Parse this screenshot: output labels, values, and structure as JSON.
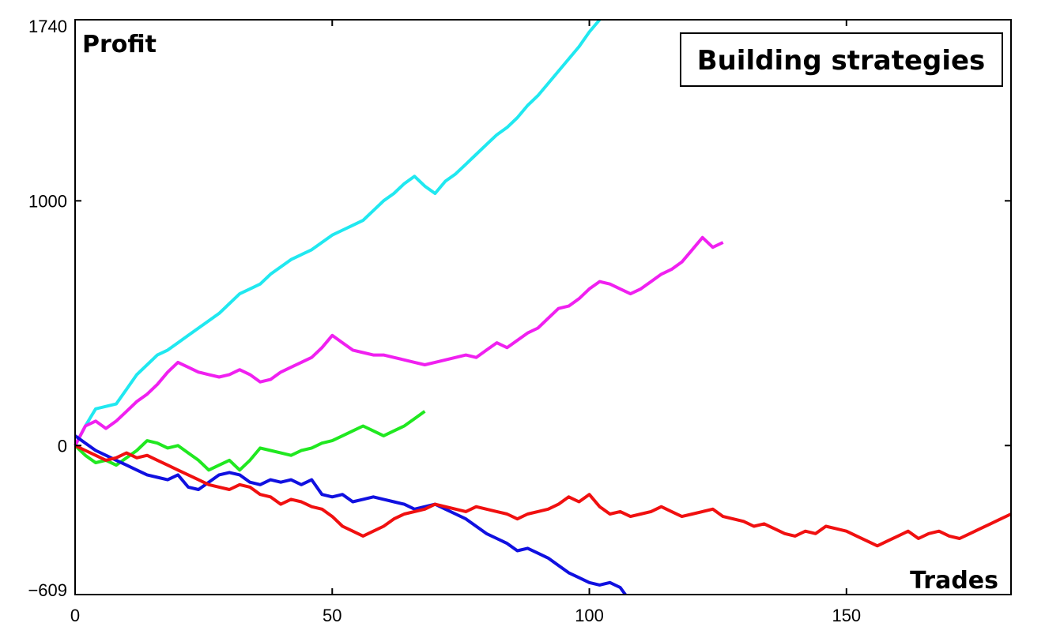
{
  "chart_data": {
    "type": "line",
    "title": "Building strategies",
    "xlabel": "Trades",
    "ylabel": "Profit",
    "xlim": [
      0,
      182
    ],
    "ylim": [
      -609,
      1740
    ],
    "xticks": [
      0,
      50,
      100,
      150
    ],
    "yticks": [
      -609,
      0,
      1000,
      1740
    ],
    "xtick_labels": [
      "0",
      "50",
      "100",
      "150"
    ],
    "ytick_labels": [
      "−609",
      "0",
      "1000",
      "1740"
    ],
    "grid": false,
    "legend": "none",
    "series": [
      {
        "color": "#20e8f0",
        "x": [
          0,
          2,
          4,
          6,
          8,
          10,
          12,
          14,
          16,
          18,
          20,
          22,
          24,
          26,
          28,
          30,
          32,
          34,
          36,
          38,
          40,
          42,
          44,
          46,
          48,
          50,
          52,
          54,
          56,
          58,
          60,
          62,
          64,
          66,
          68,
          70,
          72,
          74,
          76,
          78,
          80,
          82,
          84,
          86,
          88,
          90,
          92,
          94,
          96,
          98,
          100,
          102
        ],
        "y": [
          0,
          80,
          150,
          160,
          170,
          230,
          290,
          330,
          370,
          390,
          420,
          450,
          480,
          510,
          540,
          580,
          620,
          640,
          660,
          700,
          730,
          760,
          780,
          800,
          830,
          860,
          880,
          900,
          920,
          960,
          1000,
          1030,
          1070,
          1100,
          1060,
          1030,
          1080,
          1110,
          1150,
          1190,
          1230,
          1270,
          1300,
          1340,
          1390,
          1430,
          1480,
          1530,
          1580,
          1630,
          1690,
          1740
        ]
      },
      {
        "color": "#f020f0",
        "x": [
          0,
          2,
          4,
          6,
          8,
          10,
          12,
          14,
          16,
          18,
          20,
          22,
          24,
          26,
          28,
          30,
          32,
          34,
          36,
          38,
          40,
          42,
          44,
          46,
          48,
          50,
          52,
          54,
          56,
          58,
          60,
          62,
          64,
          66,
          68,
          70,
          72,
          74,
          76,
          78,
          80,
          82,
          84,
          86,
          88,
          90,
          92,
          94,
          96,
          98,
          100,
          102,
          104,
          106,
          108,
          110,
          112,
          114,
          116,
          118,
          120,
          122,
          124,
          126
        ],
        "y": [
          0,
          80,
          100,
          70,
          100,
          140,
          180,
          210,
          250,
          300,
          340,
          320,
          300,
          290,
          280,
          290,
          310,
          290,
          260,
          270,
          300,
          320,
          340,
          360,
          400,
          450,
          420,
          390,
          380,
          370,
          370,
          360,
          350,
          340,
          330,
          340,
          350,
          360,
          370,
          360,
          390,
          420,
          400,
          430,
          460,
          480,
          520,
          560,
          570,
          600,
          640,
          670,
          660,
          640,
          620,
          640,
          670,
          700,
          720,
          750,
          800,
          850,
          810,
          830
        ]
      },
      {
        "color": "#20e820",
        "x": [
          0,
          2,
          4,
          6,
          8,
          10,
          12,
          14,
          16,
          18,
          20,
          22,
          24,
          26,
          28,
          30,
          32,
          34,
          36,
          38,
          40,
          42,
          44,
          46,
          48,
          50,
          52,
          54,
          56,
          58,
          60,
          62,
          64,
          66,
          68
        ],
        "y": [
          0,
          -40,
          -70,
          -60,
          -80,
          -50,
          -20,
          20,
          10,
          -10,
          0,
          -30,
          -60,
          -100,
          -80,
          -60,
          -100,
          -60,
          -10,
          -20,
          -30,
          -40,
          -20,
          -10,
          10,
          20,
          40,
          60,
          80,
          60,
          40,
          60,
          80,
          110,
          140
        ]
      },
      {
        "color": "#1010e0",
        "x": [
          0,
          2,
          4,
          6,
          8,
          10,
          12,
          14,
          16,
          18,
          20,
          22,
          24,
          26,
          28,
          30,
          32,
          34,
          36,
          38,
          40,
          42,
          44,
          46,
          48,
          50,
          52,
          54,
          56,
          58,
          60,
          62,
          64,
          66,
          68,
          70,
          72,
          74,
          76,
          78,
          80,
          82,
          84,
          86,
          88,
          90,
          92,
          94,
          96,
          98,
          100,
          102,
          104,
          106,
          107
        ],
        "y": [
          40,
          10,
          -20,
          -40,
          -60,
          -80,
          -100,
          -120,
          -130,
          -140,
          -120,
          -170,
          -180,
          -150,
          -120,
          -110,
          -120,
          -150,
          -160,
          -140,
          -150,
          -140,
          -160,
          -140,
          -200,
          -210,
          -200,
          -230,
          -220,
          -210,
          -220,
          -230,
          -240,
          -260,
          -250,
          -240,
          -260,
          -280,
          -300,
          -330,
          -360,
          -380,
          -400,
          -430,
          -420,
          -440,
          -460,
          -490,
          -520,
          -540,
          -560,
          -570,
          -560,
          -580,
          -609
        ]
      },
      {
        "color": "#f01010",
        "x": [
          0,
          2,
          4,
          6,
          8,
          10,
          12,
          14,
          16,
          18,
          20,
          22,
          24,
          26,
          28,
          30,
          32,
          34,
          36,
          38,
          40,
          42,
          44,
          46,
          48,
          50,
          52,
          54,
          56,
          58,
          60,
          62,
          64,
          66,
          68,
          70,
          72,
          74,
          76,
          78,
          80,
          82,
          84,
          86,
          88,
          90,
          92,
          94,
          96,
          98,
          100,
          102,
          104,
          106,
          108,
          110,
          112,
          114,
          116,
          118,
          120,
          122,
          124,
          126,
          128,
          130,
          132,
          134,
          136,
          138,
          140,
          142,
          144,
          146,
          148,
          150,
          152,
          154,
          156,
          158,
          160,
          162,
          164,
          166,
          168,
          170,
          172,
          174,
          176,
          178,
          180,
          182
        ],
        "y": [
          0,
          -20,
          -40,
          -60,
          -50,
          -30,
          -50,
          -40,
          -60,
          -80,
          -100,
          -120,
          -140,
          -160,
          -170,
          -180,
          -160,
          -170,
          -200,
          -210,
          -240,
          -220,
          -230,
          -250,
          -260,
          -290,
          -330,
          -350,
          -370,
          -350,
          -330,
          -300,
          -280,
          -270,
          -260,
          -240,
          -250,
          -260,
          -270,
          -250,
          -260,
          -270,
          -280,
          -300,
          -280,
          -270,
          -260,
          -240,
          -210,
          -230,
          -200,
          -250,
          -280,
          -270,
          -290,
          -280,
          -270,
          -250,
          -270,
          -290,
          -280,
          -270,
          -260,
          -290,
          -300,
          -310,
          -330,
          -320,
          -340,
          -360,
          -370,
          -350,
          -360,
          -330,
          -340,
          -350,
          -370,
          -390,
          -410,
          -390,
          -370,
          -350,
          -380,
          -360,
          -350,
          -370,
          -380,
          -360,
          -340,
          -320,
          -300,
          -280
        ]
      }
    ]
  }
}
